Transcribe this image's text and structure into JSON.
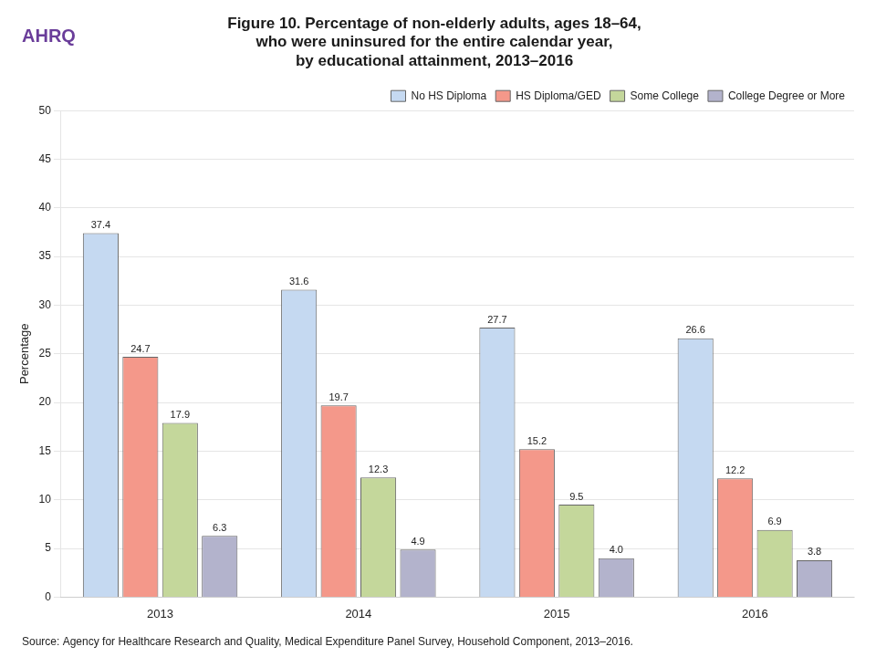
{
  "chart_data": {
    "type": "bar",
    "title": [
      "Figure 10. Percentage of non-elderly adults, ages 18–64,",
      "who were uninsured for the entire calendar year,",
      "by educational attainment, 2013–2016"
    ],
    "annotations": [
      "AHRQ",
      "Source: Agency for Healthcare Research and Quality, Medical Expenditure Panel Survey, Household Component, 2013–2016."
    ],
    "y_label": "Percentage",
    "categories": [
      "2013",
      "2014",
      "2015",
      "2016"
    ],
    "series": [
      {
        "name": "No HS Diploma",
        "color": "#c5d9f1",
        "values": [
          37.4,
          31.6,
          27.7,
          26.6
        ]
      },
      {
        "name": "HS Diploma/GED",
        "color": "#f4988a",
        "values": [
          24.7,
          19.7,
          15.2,
          12.2
        ]
      },
      {
        "name": "Some College",
        "color": "#c4d79b",
        "values": [
          17.9,
          12.3,
          9.5,
          6.9
        ]
      },
      {
        "name": "College Degree or More",
        "color": "#b3b3cc",
        "values": [
          6.3,
          4.9,
          4.0,
          3.8
        ],
        "value_labels": [
          "6.3",
          "4.9",
          "4.0",
          "3.8"
        ]
      }
    ],
    "ylim": [
      0,
      50
    ],
    "yticks": [
      0,
      5,
      10,
      15,
      20,
      25,
      30,
      35,
      40,
      45,
      50
    ],
    "grid": true,
    "legend": "top",
    "data_labels": true
  }
}
